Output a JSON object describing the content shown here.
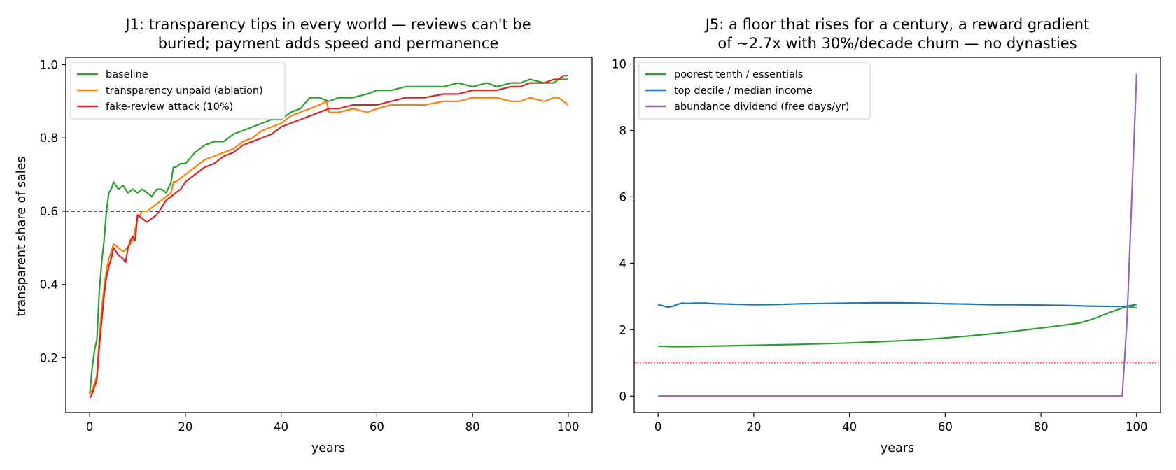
{
  "chart_data": [
    {
      "type": "line",
      "title_lines": [
        "J1: transparency tips in every world — reviews can't be",
        "buried; payment adds speed and permanence"
      ],
      "xlabel": "years",
      "ylabel": "transparent share of sales",
      "xlim": [
        -5,
        105
      ],
      "ylim": [
        0.05,
        1.02
      ],
      "xticks": [
        0,
        20,
        40,
        60,
        80,
        100
      ],
      "yticks": [
        0.2,
        0.4,
        0.6,
        0.8,
        1.0
      ],
      "xtick_labels": [
        "0",
        "20",
        "40",
        "60",
        "80",
        "100"
      ],
      "ytick_labels": [
        "0.2",
        "0.4",
        "0.6",
        "0.8",
        "1.0"
      ],
      "grid": false,
      "legend_position": "top-left",
      "reference_line": {
        "y": 0.6,
        "style": "dashed",
        "color": "#000000"
      },
      "series": [
        {
          "name": "baseline",
          "color": "#2ca02c",
          "x": [
            0,
            0.5,
            1,
            1.5,
            2,
            2.5,
            3,
            3.5,
            4,
            4.5,
            5,
            6,
            7,
            8,
            9,
            10,
            11,
            12,
            13,
            14,
            15,
            16,
            17,
            17.5,
            18,
            19,
            20,
            22,
            24,
            26,
            28,
            30,
            32,
            34,
            36,
            38,
            40,
            42,
            44,
            46,
            48,
            50,
            52,
            55,
            58,
            60,
            63,
            66,
            70,
            74,
            77,
            80,
            83,
            85,
            88,
            90,
            92,
            95,
            97,
            98,
            99,
            100
          ],
          "y": [
            0.1,
            0.17,
            0.22,
            0.25,
            0.38,
            0.46,
            0.52,
            0.6,
            0.65,
            0.66,
            0.68,
            0.66,
            0.67,
            0.65,
            0.66,
            0.65,
            0.66,
            0.65,
            0.64,
            0.66,
            0.66,
            0.65,
            0.68,
            0.72,
            0.72,
            0.73,
            0.73,
            0.76,
            0.78,
            0.79,
            0.79,
            0.81,
            0.82,
            0.83,
            0.84,
            0.85,
            0.85,
            0.87,
            0.88,
            0.91,
            0.91,
            0.9,
            0.91,
            0.91,
            0.92,
            0.93,
            0.93,
            0.94,
            0.94,
            0.94,
            0.95,
            0.94,
            0.95,
            0.94,
            0.95,
            0.95,
            0.96,
            0.95,
            0.95,
            0.96,
            0.96,
            0.96
          ]
        },
        {
          "name": "transparency unpaid (ablation)",
          "color": "#ff7f0e",
          "x": [
            0,
            0.5,
            1,
            1.5,
            2,
            2.5,
            3,
            3.5,
            4,
            4.5,
            5,
            6,
            7,
            8,
            9,
            10,
            11,
            12,
            13,
            14,
            15,
            16,
            17,
            17.5,
            18,
            19,
            20,
            22,
            24,
            26,
            28,
            30,
            32,
            34,
            36,
            38,
            40,
            42,
            44,
            46,
            48,
            49.5,
            50,
            52,
            55,
            58,
            60,
            63,
            66,
            70,
            74,
            77,
            80,
            83,
            85,
            88,
            90,
            92,
            95,
            97,
            98,
            99,
            100
          ],
          "y": [
            0.1,
            0.11,
            0.13,
            0.15,
            0.25,
            0.33,
            0.39,
            0.44,
            0.47,
            0.49,
            0.51,
            0.5,
            0.49,
            0.5,
            0.52,
            0.58,
            0.6,
            0.6,
            0.61,
            0.62,
            0.63,
            0.64,
            0.65,
            0.68,
            0.68,
            0.69,
            0.7,
            0.72,
            0.74,
            0.75,
            0.76,
            0.77,
            0.79,
            0.8,
            0.82,
            0.83,
            0.84,
            0.86,
            0.87,
            0.88,
            0.89,
            0.9,
            0.87,
            0.87,
            0.88,
            0.87,
            0.88,
            0.89,
            0.89,
            0.89,
            0.9,
            0.9,
            0.91,
            0.91,
            0.91,
            0.9,
            0.9,
            0.91,
            0.9,
            0.91,
            0.91,
            0.9,
            0.89
          ]
        },
        {
          "name": "fake-review attack (10%)",
          "color": "#d62728",
          "x": [
            0,
            0.5,
            1,
            1.5,
            2,
            2.5,
            3,
            3.5,
            4,
            4.5,
            5,
            6,
            7,
            7.5,
            8,
            8.5,
            9,
            9.5,
            10,
            11,
            12,
            13,
            14,
            15,
            16,
            17,
            18,
            19,
            20,
            22,
            24,
            26,
            28,
            30,
            32,
            34,
            36,
            38,
            40,
            42,
            44,
            46,
            48,
            50,
            52,
            55,
            58,
            60,
            63,
            66,
            70,
            74,
            77,
            80,
            83,
            85,
            88,
            90,
            92,
            95,
            97,
            98,
            99,
            100
          ],
          "y": [
            0.09,
            0.1,
            0.12,
            0.14,
            0.23,
            0.3,
            0.37,
            0.42,
            0.45,
            0.47,
            0.5,
            0.48,
            0.47,
            0.46,
            0.5,
            0.52,
            0.53,
            0.52,
            0.59,
            0.58,
            0.57,
            0.58,
            0.59,
            0.61,
            0.63,
            0.64,
            0.65,
            0.66,
            0.68,
            0.7,
            0.72,
            0.73,
            0.75,
            0.76,
            0.78,
            0.79,
            0.8,
            0.81,
            0.83,
            0.84,
            0.85,
            0.86,
            0.87,
            0.88,
            0.88,
            0.89,
            0.89,
            0.89,
            0.9,
            0.91,
            0.91,
            0.92,
            0.92,
            0.93,
            0.93,
            0.93,
            0.94,
            0.94,
            0.95,
            0.95,
            0.96,
            0.96,
            0.97,
            0.97
          ]
        }
      ]
    },
    {
      "type": "line",
      "title_lines": [
        "J5: a floor that rises for a century, a reward gradient",
        "of ~2.7x with 30%/decade churn — no dynasties"
      ],
      "xlabel": "years",
      "ylabel": "",
      "xlim": [
        -5,
        105
      ],
      "ylim": [
        -0.5,
        10.2
      ],
      "xticks": [
        0,
        20,
        40,
        60,
        80,
        100
      ],
      "yticks": [
        0,
        2,
        4,
        6,
        8,
        10
      ],
      "xtick_labels": [
        "0",
        "20",
        "40",
        "60",
        "80",
        "100"
      ],
      "ytick_labels": [
        "0",
        "2",
        "4",
        "6",
        "8",
        "10"
      ],
      "grid": false,
      "legend_position": "top-left",
      "reference_line": {
        "y": 1.0,
        "style": "dotted",
        "color": "#ff0000"
      },
      "series": [
        {
          "name": "poorest tenth / essentials",
          "color": "#2ca02c",
          "x": [
            0,
            1,
            3,
            5,
            10,
            20,
            30,
            40,
            50,
            55,
            60,
            65,
            70,
            75,
            80,
            85,
            88,
            90,
            92,
            94,
            96,
            97,
            98,
            99,
            100
          ],
          "y": [
            1.5,
            1.5,
            1.49,
            1.49,
            1.5,
            1.53,
            1.56,
            1.6,
            1.66,
            1.7,
            1.75,
            1.81,
            1.88,
            1.96,
            2.05,
            2.14,
            2.2,
            2.28,
            2.38,
            2.5,
            2.6,
            2.65,
            2.7,
            2.68,
            2.65
          ]
        },
        {
          "name": "top decile / median income",
          "color": "#1f77b4",
          "x": [
            0,
            1,
            2,
            3,
            4,
            5,
            6,
            8,
            10,
            12,
            15,
            20,
            25,
            30,
            35,
            40,
            45,
            50,
            55,
            60,
            65,
            70,
            75,
            80,
            85,
            90,
            95,
            97,
            98,
            99,
            100
          ],
          "y": [
            2.75,
            2.72,
            2.68,
            2.7,
            2.76,
            2.8,
            2.79,
            2.8,
            2.8,
            2.78,
            2.77,
            2.75,
            2.76,
            2.78,
            2.79,
            2.8,
            2.81,
            2.81,
            2.8,
            2.78,
            2.77,
            2.75,
            2.75,
            2.74,
            2.73,
            2.71,
            2.7,
            2.7,
            2.71,
            2.73,
            2.76
          ]
        },
        {
          "name": "abundance dividend (free days/yr)",
          "color": "#9467bd",
          "x": [
            0,
            20,
            40,
            60,
            80,
            96,
            97,
            98,
            99,
            100
          ],
          "y": [
            0,
            0,
            0,
            0,
            0,
            0,
            0,
            2.3,
            6.0,
            9.7
          ]
        }
      ]
    }
  ]
}
